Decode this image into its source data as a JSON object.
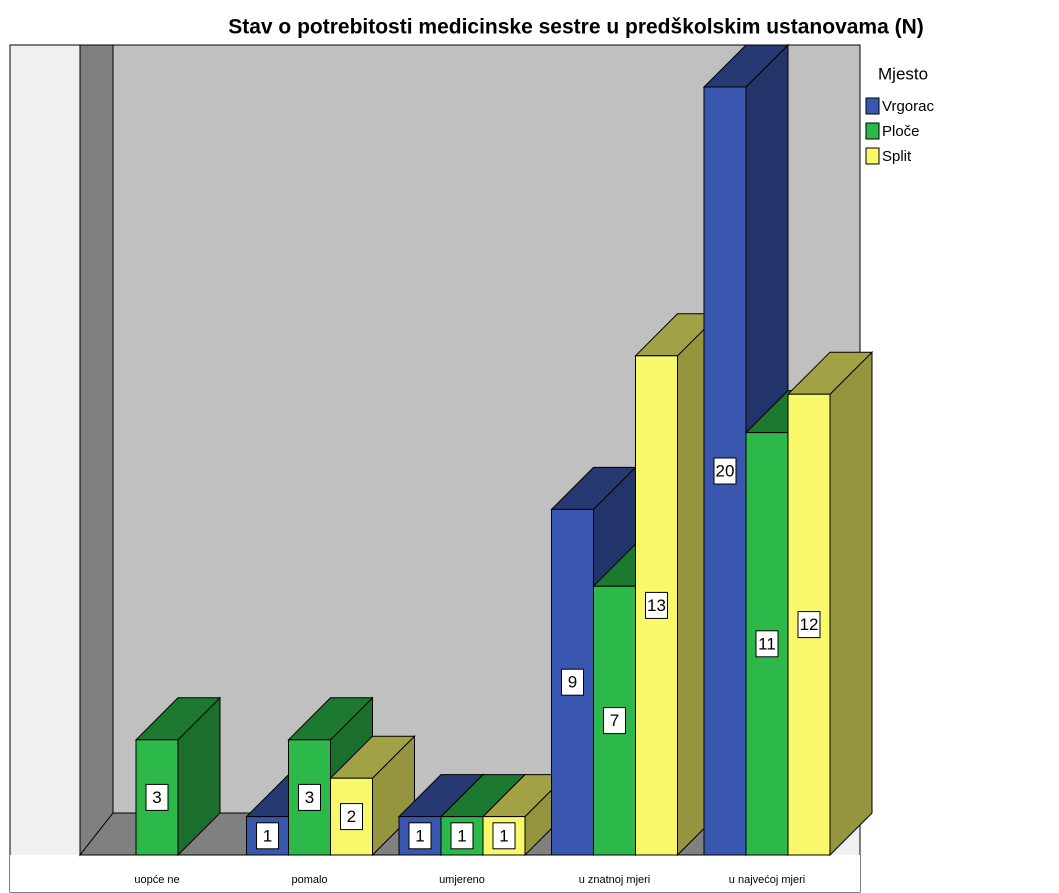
{
  "chart_data": {
    "type": "bar3d",
    "title": "Stav o potrebitosti medicinske sestre u predškolskim ustanovama (N)",
    "legend_title": "Mjesto",
    "categories": [
      "uopće ne",
      "pomalo",
      "umjereno",
      "u znatnoj mjeri",
      "u najvećoj mjeri"
    ],
    "series": [
      {
        "name": "Vrgorac",
        "color": "#3a57b0",
        "values": [
          null,
          1,
          1,
          9,
          20
        ]
      },
      {
        "name": "Ploče",
        "color": "#2db84a",
        "values": [
          3,
          3,
          1,
          7,
          11
        ]
      },
      {
        "name": "Split",
        "color": "#f8f86a",
        "values": [
          null,
          2,
          1,
          13,
          12
        ]
      }
    ],
    "legend": "right"
  }
}
